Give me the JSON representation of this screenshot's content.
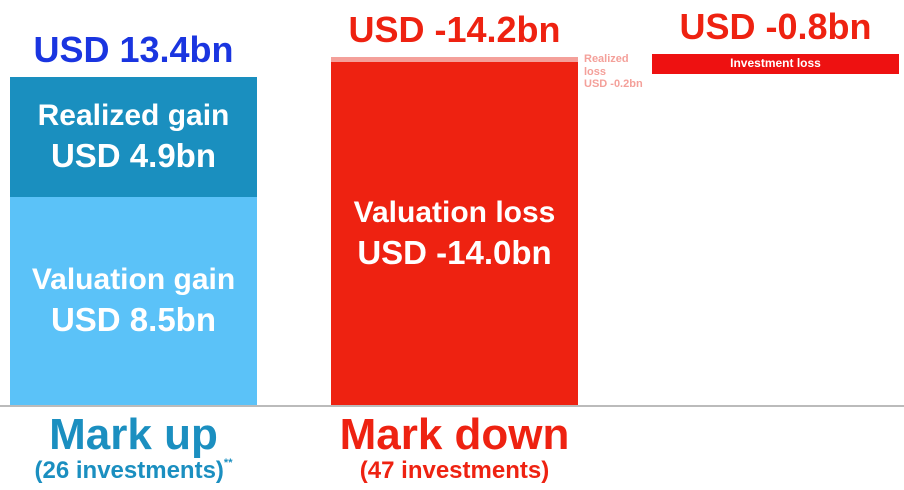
{
  "chart_data": {
    "type": "stacked-bar",
    "bars": [
      {
        "label": "Mark up",
        "sublabel": "(26 investments)",
        "note": "**",
        "label_color": "#1b8fc0",
        "total": 13.4,
        "total_label": "USD 13.4bn",
        "total_color": "#1a35e0",
        "segments": [
          {
            "name": "Valuation gain",
            "value": 8.5,
            "value_label": "USD 8.5bn",
            "color": "#5bc2f8"
          },
          {
            "name": "Realized gain",
            "value": 4.9,
            "value_label": "USD 4.9bn",
            "color": "#1a8fbf"
          }
        ]
      },
      {
        "label": "Mark down",
        "sublabel": "(47 investments)",
        "label_color": "#ee2211",
        "total": -14.2,
        "total_label": "USD -14.2bn",
        "total_color": "#ee2211",
        "segments": [
          {
            "name": "Valuation loss",
            "value": -14.0,
            "value_label": "USD -14.0bn",
            "color": "#ee2211"
          },
          {
            "name": "Realized loss",
            "value": -0.2,
            "value_label": "USD -0.2bn",
            "color": "#f4a09a"
          }
        ]
      },
      {
        "total": -0.8,
        "total_label": "USD -0.8bn",
        "total_color": "#ee2211",
        "segments": [
          {
            "name": "Investment loss",
            "value": -0.8,
            "color": "#ee1111"
          }
        ]
      }
    ]
  }
}
